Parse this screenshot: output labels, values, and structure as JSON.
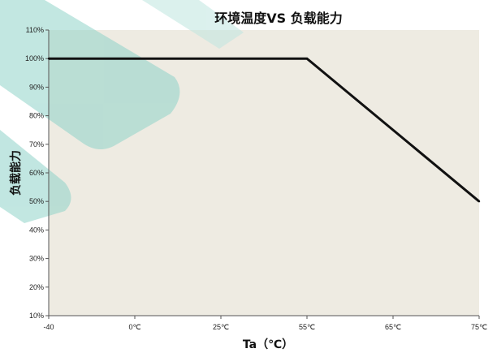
{
  "colors": {
    "plot_background": "#EEEBE2",
    "line": "#111111",
    "watermark": "#8FD3C9"
  },
  "chart_data": {
    "type": "line",
    "title": "环境温度VS 负载能力",
    "xlabel": "Ta（℃）",
    "ylabel": "负载能力",
    "x_categories": [
      "-40",
      "0℃",
      "25℃",
      "55℃",
      "65℃",
      "75℃"
    ],
    "y_ticks": [
      "10%",
      "20%",
      "30%",
      "40%",
      "50%",
      "60%",
      "70%",
      "80%",
      "90%",
      "100%",
      "110%"
    ],
    "ylim": [
      10,
      110
    ],
    "grid": false,
    "series": [
      {
        "x": [
          "-40",
          "0℃",
          "25℃",
          "55℃",
          "75℃"
        ],
        "y": [
          100,
          100,
          100,
          100,
          50
        ]
      }
    ]
  }
}
